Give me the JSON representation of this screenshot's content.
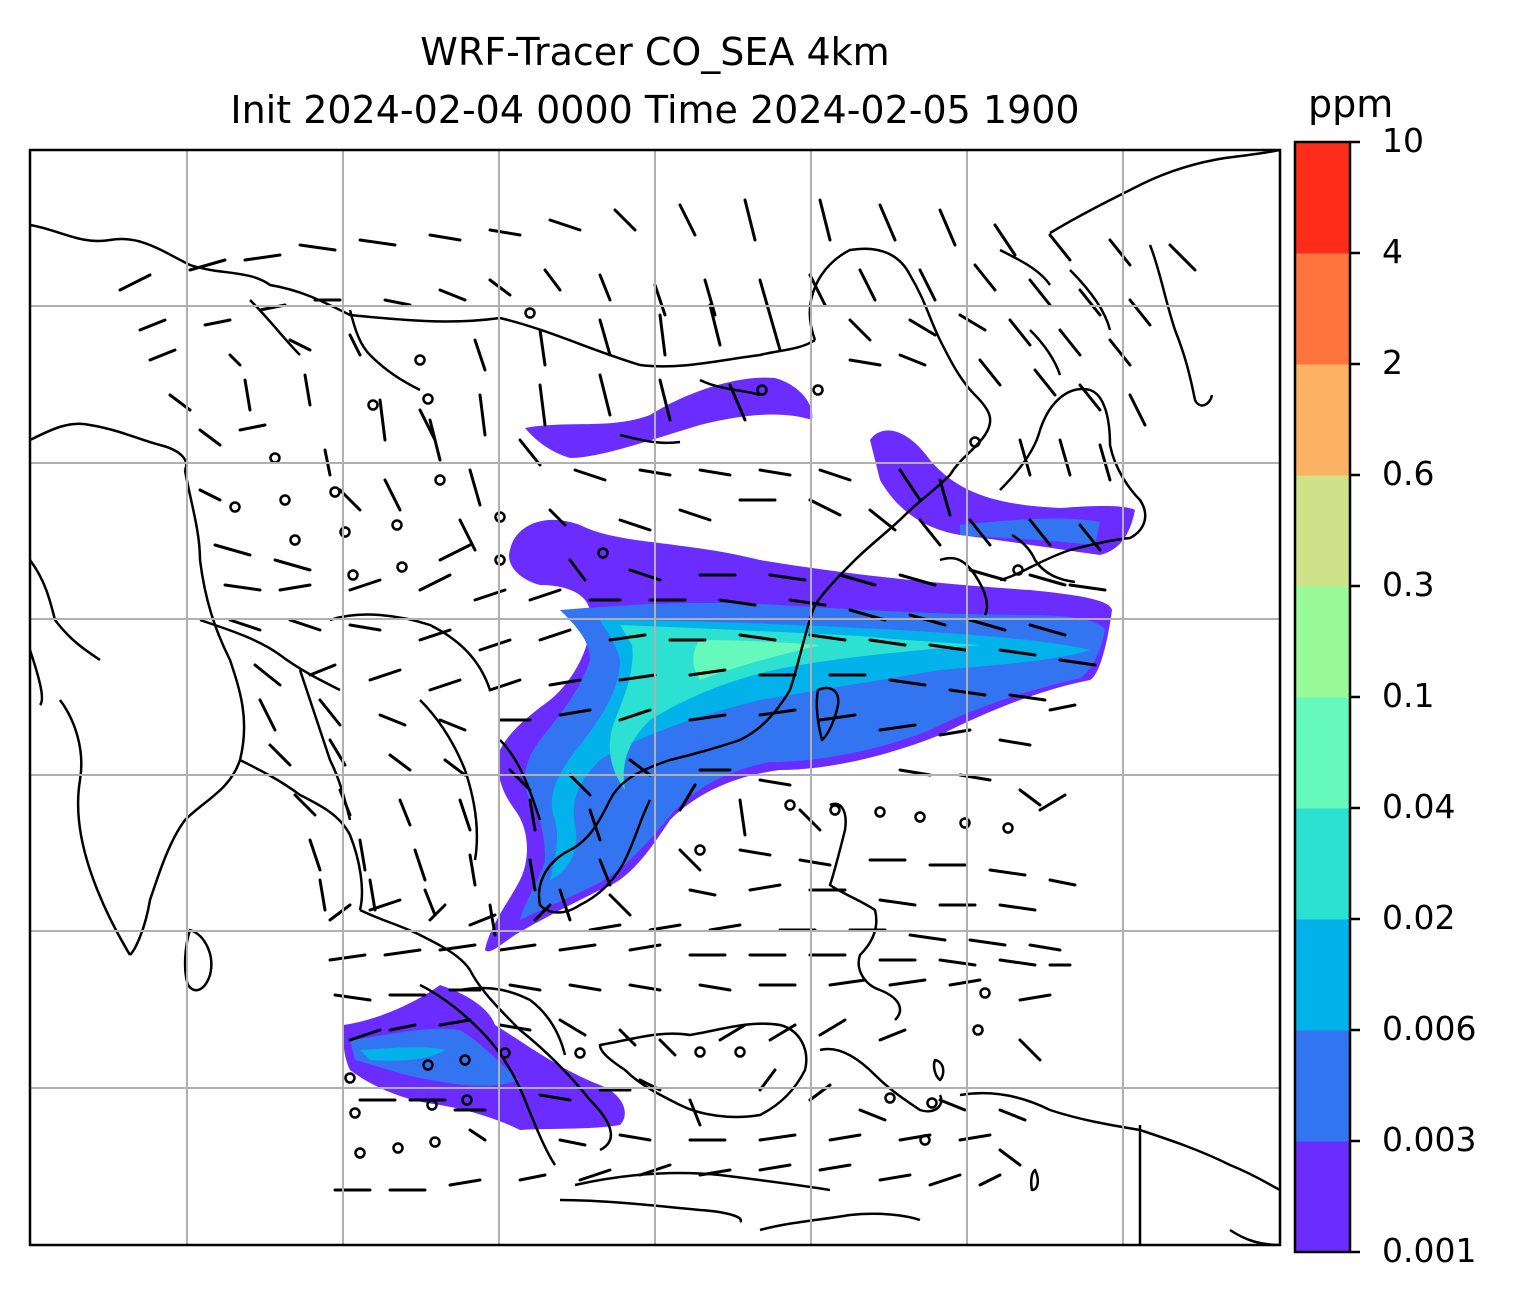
{
  "title": {
    "line1": "WRF-Tracer CO_SEA 4km",
    "line2": "Init 2024-02-04 0000 Time 2024-02-05 1900"
  },
  "colorbar": {
    "unit": "ppm",
    "ticks": [
      "0.001",
      "0.003",
      "0.006",
      "0.02",
      "0.04",
      "0.1",
      "0.3",
      "0.6",
      "2",
      "4",
      "10"
    ],
    "colors": [
      "#6a2cff",
      "#3375f0",
      "#03b2ea",
      "#2ce0d2",
      "#66f9bc",
      "#98fb97",
      "#cfe189",
      "#fdb264",
      "#fe743f",
      "#ff2c1a"
    ]
  },
  "map": {
    "projection": "regional map, Southeast & East Asia",
    "gridlines": true,
    "overlay": "wind barbs",
    "field": "CO tracer concentration"
  }
}
